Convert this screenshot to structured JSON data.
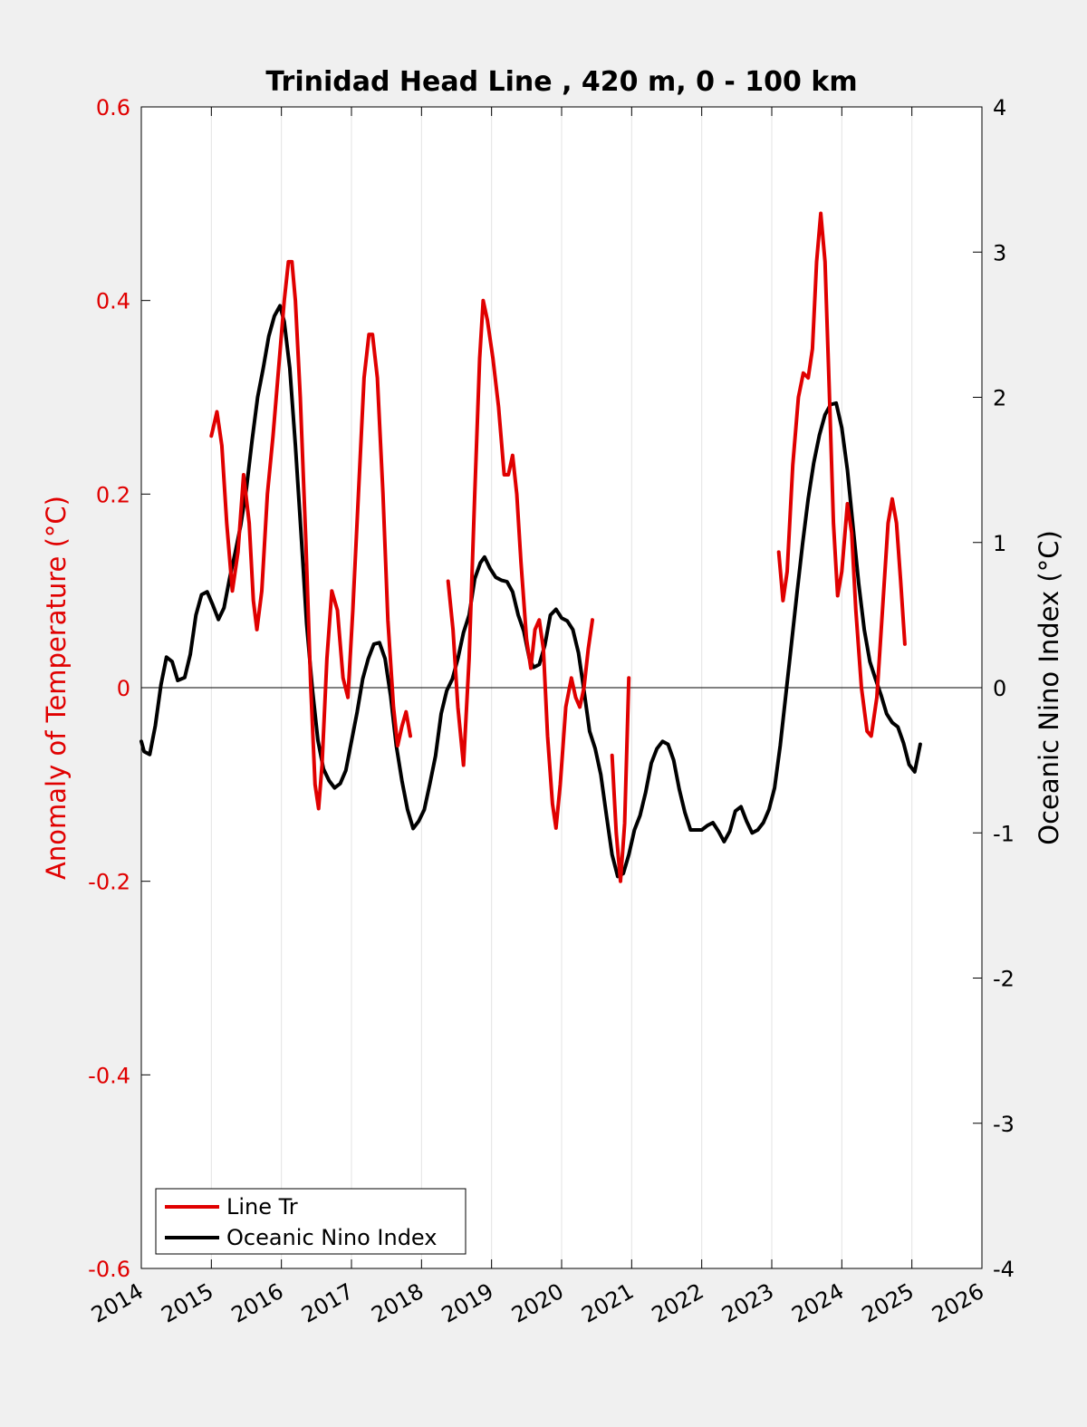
{
  "chart_data": {
    "type": "line",
    "title": "Trinidad Head Line , 420 m, 0 - 100 km",
    "xlabel": "",
    "ylabel_left": "Anomaly of Temperature (°C)",
    "ylabel_right": "Oceanic Nino Index (°C)",
    "xlim": [
      2014,
      2026
    ],
    "ylim_left": [
      -0.6,
      0.6
    ],
    "ylim_right": [
      -4,
      4
    ],
    "x_ticks": [
      "2014",
      "2015",
      "2016",
      "2017",
      "2018",
      "2019",
      "2020",
      "2021",
      "2022",
      "2023",
      "2024",
      "2025",
      "2026"
    ],
    "y_left_ticks": [
      "-0.6",
      "-0.4",
      "-0.2",
      "0",
      "0.2",
      "0.4",
      "0.6"
    ],
    "y_right_ticks": [
      "-4",
      "-3",
      "-2",
      "-1",
      "0",
      "1",
      "2",
      "3",
      "4"
    ],
    "grid": "vertical",
    "legend_position": "bottom-left",
    "colors": {
      "line_tr": "#e00000",
      "oni": "#000000",
      "left_axis": "#e00000",
      "right_axis": "#000000"
    },
    "series": [
      {
        "name": "Line Tr",
        "axis": "left",
        "color": "#e00000",
        "segments": [
          [
            [
              2015.0,
              0.26
            ],
            [
              2015.08,
              0.285
            ],
            [
              2015.15,
              0.25
            ],
            [
              2015.22,
              0.17
            ],
            [
              2015.3,
              0.1
            ],
            [
              2015.38,
              0.14
            ],
            [
              2015.46,
              0.22
            ],
            [
              2015.54,
              0.17
            ],
            [
              2015.6,
              0.09
            ],
            [
              2015.65,
              0.06
            ],
            [
              2015.72,
              0.1
            ],
            [
              2015.8,
              0.2
            ],
            [
              2015.88,
              0.26
            ],
            [
              2015.96,
              0.33
            ],
            [
              2016.04,
              0.4
            ],
            [
              2016.1,
              0.44
            ],
            [
              2016.15,
              0.44
            ],
            [
              2016.2,
              0.4
            ],
            [
              2016.27,
              0.3
            ],
            [
              2016.35,
              0.15
            ],
            [
              2016.42,
              0.0
            ],
            [
              2016.48,
              -0.1
            ],
            [
              2016.53,
              -0.125
            ],
            [
              2016.58,
              -0.08
            ],
            [
              2016.65,
              0.03
            ],
            [
              2016.72,
              0.1
            ],
            [
              2016.8,
              0.08
            ],
            [
              2016.88,
              0.01
            ],
            [
              2016.95,
              -0.01
            ],
            [
              2017.02,
              0.08
            ],
            [
              2017.1,
              0.2
            ],
            [
              2017.18,
              0.32
            ],
            [
              2017.25,
              0.365
            ],
            [
              2017.3,
              0.365
            ],
            [
              2017.37,
              0.32
            ],
            [
              2017.45,
              0.2
            ],
            [
              2017.52,
              0.07
            ],
            [
              2017.6,
              -0.02
            ],
            [
              2017.66,
              -0.06
            ],
            [
              2017.72,
              -0.04
            ],
            [
              2017.78,
              -0.025
            ],
            [
              2017.84,
              -0.05
            ]
          ],
          [
            [
              2018.38,
              0.11
            ],
            [
              2018.45,
              0.06
            ],
            [
              2018.52,
              -0.02
            ],
            [
              2018.6,
              -0.08
            ],
            [
              2018.68,
              0.03
            ],
            [
              2018.76,
              0.2
            ],
            [
              2018.83,
              0.34
            ],
            [
              2018.88,
              0.4
            ],
            [
              2018.94,
              0.38
            ],
            [
              2019.02,
              0.34
            ],
            [
              2019.1,
              0.29
            ],
            [
              2019.18,
              0.22
            ],
            [
              2019.24,
              0.22
            ],
            [
              2019.3,
              0.24
            ],
            [
              2019.36,
              0.2
            ],
            [
              2019.42,
              0.13
            ],
            [
              2019.5,
              0.05
            ],
            [
              2019.56,
              0.02
            ],
            [
              2019.62,
              0.06
            ],
            [
              2019.68,
              0.07
            ],
            [
              2019.74,
              0.04
            ],
            [
              2019.8,
              -0.05
            ],
            [
              2019.87,
              -0.12
            ],
            [
              2019.92,
              -0.145
            ],
            [
              2019.98,
              -0.1
            ],
            [
              2020.06,
              -0.02
            ],
            [
              2020.14,
              0.01
            ],
            [
              2020.2,
              -0.01
            ],
            [
              2020.26,
              -0.02
            ],
            [
              2020.32,
              0.0
            ],
            [
              2020.38,
              0.04
            ],
            [
              2020.44,
              0.07
            ]
          ],
          [
            [
              2020.72,
              -0.07
            ],
            [
              2020.78,
              -0.15
            ],
            [
              2020.84,
              -0.2
            ],
            [
              2020.9,
              -0.14
            ],
            [
              2020.96,
              0.01
            ]
          ],
          [
            [
              2023.1,
              0.14
            ],
            [
              2023.16,
              0.09
            ],
            [
              2023.22,
              0.12
            ],
            [
              2023.3,
              0.23
            ],
            [
              2023.38,
              0.3
            ],
            [
              2023.45,
              0.325
            ],
            [
              2023.52,
              0.32
            ],
            [
              2023.58,
              0.35
            ],
            [
              2023.64,
              0.44
            ],
            [
              2023.7,
              0.49
            ],
            [
              2023.76,
              0.44
            ],
            [
              2023.82,
              0.31
            ],
            [
              2023.88,
              0.17
            ],
            [
              2023.94,
              0.095
            ],
            [
              2024.0,
              0.12
            ],
            [
              2024.08,
              0.19
            ],
            [
              2024.14,
              0.16
            ],
            [
              2024.2,
              0.08
            ],
            [
              2024.28,
              0.0
            ],
            [
              2024.36,
              -0.045
            ],
            [
              2024.42,
              -0.05
            ],
            [
              2024.5,
              -0.01
            ],
            [
              2024.58,
              0.08
            ],
            [
              2024.66,
              0.17
            ],
            [
              2024.72,
              0.195
            ],
            [
              2024.78,
              0.17
            ],
            [
              2024.84,
              0.11
            ],
            [
              2024.9,
              0.045
            ]
          ]
        ]
      },
      {
        "name": "Oceanic Nino Index",
        "axis": "right",
        "color": "#000000",
        "segments": [
          [
            [
              2014.0,
              -0.37
            ],
            [
              2014.04,
              -0.44
            ],
            [
              2014.12,
              -0.46
            ],
            [
              2014.2,
              -0.26
            ],
            [
              2014.28,
              0.02
            ],
            [
              2014.36,
              0.21
            ],
            [
              2014.44,
              0.18
            ],
            [
              2014.52,
              0.05
            ],
            [
              2014.62,
              0.07
            ],
            [
              2014.7,
              0.23
            ],
            [
              2014.78,
              0.5
            ],
            [
              2014.86,
              0.64
            ],
            [
              2014.94,
              0.66
            ],
            [
              2015.02,
              0.57
            ],
            [
              2015.1,
              0.47
            ],
            [
              2015.18,
              0.55
            ],
            [
              2015.26,
              0.75
            ],
            [
              2015.34,
              0.93
            ],
            [
              2015.42,
              1.12
            ],
            [
              2015.5,
              1.37
            ],
            [
              2015.58,
              1.7
            ],
            [
              2015.66,
              2.0
            ],
            [
              2015.74,
              2.2
            ],
            [
              2015.82,
              2.42
            ],
            [
              2015.9,
              2.56
            ],
            [
              2015.98,
              2.63
            ],
            [
              2016.04,
              2.52
            ],
            [
              2016.12,
              2.2
            ],
            [
              2016.2,
              1.67
            ],
            [
              2016.28,
              1.07
            ],
            [
              2016.36,
              0.44
            ],
            [
              2016.44,
              0.0
            ],
            [
              2016.52,
              -0.36
            ],
            [
              2016.6,
              -0.56
            ],
            [
              2016.68,
              -0.64
            ],
            [
              2016.76,
              -0.69
            ],
            [
              2016.84,
              -0.66
            ],
            [
              2016.92,
              -0.57
            ],
            [
              2017.0,
              -0.37
            ],
            [
              2017.08,
              -0.17
            ],
            [
              2017.16,
              0.06
            ],
            [
              2017.24,
              0.2
            ],
            [
              2017.32,
              0.3
            ],
            [
              2017.4,
              0.31
            ],
            [
              2017.48,
              0.2
            ],
            [
              2017.56,
              -0.06
            ],
            [
              2017.64,
              -0.4
            ],
            [
              2017.72,
              -0.64
            ],
            [
              2017.8,
              -0.84
            ],
            [
              2017.88,
              -0.97
            ],
            [
              2017.96,
              -0.92
            ],
            [
              2018.04,
              -0.84
            ],
            [
              2018.12,
              -0.66
            ],
            [
              2018.2,
              -0.47
            ],
            [
              2018.28,
              -0.18
            ],
            [
              2018.36,
              -0.02
            ],
            [
              2018.44,
              0.06
            ],
            [
              2018.52,
              0.2
            ],
            [
              2018.6,
              0.38
            ],
            [
              2018.68,
              0.5
            ],
            [
              2018.76,
              0.75
            ],
            [
              2018.84,
              0.86
            ],
            [
              2018.9,
              0.9
            ],
            [
              2018.98,
              0.82
            ],
            [
              2019.06,
              0.76
            ],
            [
              2019.14,
              0.74
            ],
            [
              2019.22,
              0.73
            ],
            [
              2019.3,
              0.66
            ],
            [
              2019.38,
              0.5
            ],
            [
              2019.46,
              0.39
            ],
            [
              2019.54,
              0.2
            ],
            [
              2019.6,
              0.14
            ],
            [
              2019.68,
              0.16
            ],
            [
              2019.76,
              0.29
            ],
            [
              2019.84,
              0.5
            ],
            [
              2019.92,
              0.54
            ],
            [
              2020.0,
              0.48
            ],
            [
              2020.08,
              0.46
            ],
            [
              2020.16,
              0.4
            ],
            [
              2020.24,
              0.24
            ],
            [
              2020.32,
              -0.02
            ],
            [
              2020.4,
              -0.3
            ],
            [
              2020.48,
              -0.42
            ],
            [
              2020.56,
              -0.6
            ],
            [
              2020.64,
              -0.88
            ],
            [
              2020.72,
              -1.15
            ],
            [
              2020.8,
              -1.3
            ],
            [
              2020.88,
              -1.28
            ],
            [
              2020.96,
              -1.15
            ],
            [
              2021.04,
              -0.98
            ],
            [
              2021.12,
              -0.88
            ],
            [
              2021.2,
              -0.72
            ],
            [
              2021.28,
              -0.52
            ],
            [
              2021.36,
              -0.42
            ],
            [
              2021.44,
              -0.37
            ],
            [
              2021.52,
              -0.39
            ],
            [
              2021.6,
              -0.5
            ],
            [
              2021.68,
              -0.7
            ],
            [
              2021.76,
              -0.86
            ],
            [
              2021.84,
              -0.98
            ],
            [
              2021.92,
              -0.98
            ],
            [
              2022.0,
              -0.98
            ],
            [
              2022.08,
              -0.95
            ],
            [
              2022.16,
              -0.93
            ],
            [
              2022.24,
              -0.99
            ],
            [
              2022.32,
              -1.06
            ],
            [
              2022.4,
              -0.99
            ],
            [
              2022.48,
              -0.85
            ],
            [
              2022.56,
              -0.82
            ],
            [
              2022.64,
              -0.92
            ],
            [
              2022.72,
              -1.0
            ],
            [
              2022.8,
              -0.98
            ],
            [
              2022.88,
              -0.93
            ],
            [
              2022.96,
              -0.84
            ],
            [
              2023.04,
              -0.69
            ],
            [
              2023.12,
              -0.4
            ],
            [
              2023.2,
              -0.05
            ],
            [
              2023.28,
              0.3
            ],
            [
              2023.36,
              0.65
            ],
            [
              2023.44,
              0.99
            ],
            [
              2023.52,
              1.3
            ],
            [
              2023.6,
              1.55
            ],
            [
              2023.68,
              1.74
            ],
            [
              2023.76,
              1.88
            ],
            [
              2023.84,
              1.95
            ],
            [
              2023.92,
              1.96
            ],
            [
              2024.0,
              1.79
            ],
            [
              2024.08,
              1.5
            ],
            [
              2024.16,
              1.11
            ],
            [
              2024.24,
              0.72
            ],
            [
              2024.32,
              0.4
            ],
            [
              2024.4,
              0.18
            ],
            [
              2024.48,
              0.06
            ],
            [
              2024.56,
              -0.05
            ],
            [
              2024.64,
              -0.18
            ],
            [
              2024.72,
              -0.24
            ],
            [
              2024.8,
              -0.27
            ],
            [
              2024.88,
              -0.38
            ],
            [
              2024.96,
              -0.53
            ],
            [
              2025.04,
              -0.58
            ],
            [
              2025.12,
              -0.39
            ]
          ]
        ]
      }
    ]
  }
}
